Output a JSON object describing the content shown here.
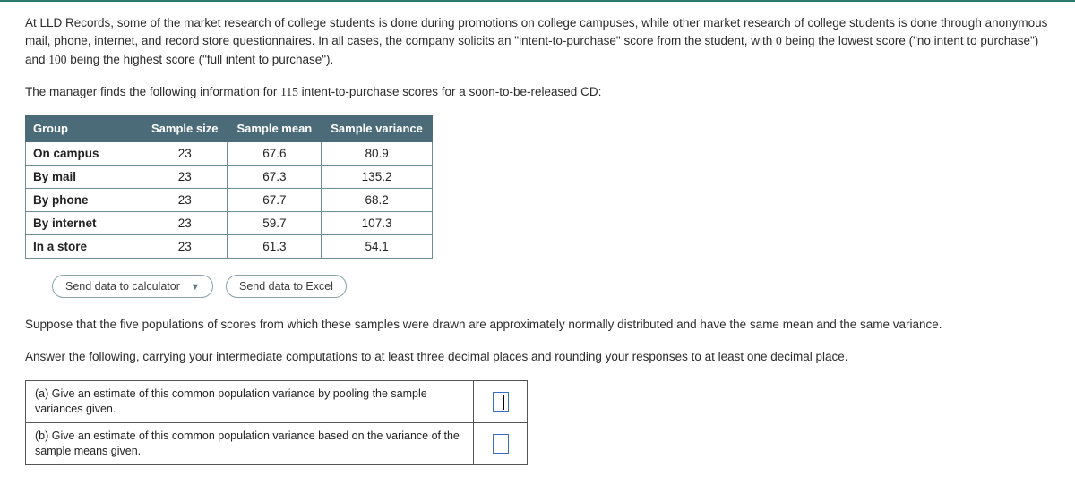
{
  "intro": {
    "p1_a": "At LLD Records, some of the market research of college students is done during promotions on college campuses, while other market research of college students is done through anonymous mail, phone, internet, and record store questionnaires. In all cases, the company solicits an \"intent-to-purchase\" score from the student, with ",
    "zero": "0",
    "p1_b": " being the lowest score (\"no intent to purchase\") and ",
    "hundred": "100",
    "p1_c": " being the highest score (\"full intent to purchase\").",
    "p2_a": "The manager finds the following information for ",
    "n": "115",
    "p2_b": " intent-to-purchase scores for a soon-to-be-released CD:"
  },
  "table": {
    "headers": {
      "group": "Group",
      "size": "Sample size",
      "mean": "Sample mean",
      "var": "Sample variance"
    },
    "rows": [
      {
        "label": "On campus",
        "size": "23",
        "mean": "67.6",
        "var": "80.9"
      },
      {
        "label": "By mail",
        "size": "23",
        "mean": "67.3",
        "var": "135.2"
      },
      {
        "label": "By phone",
        "size": "23",
        "mean": "67.7",
        "var": "68.2"
      },
      {
        "label": "By internet",
        "size": "23",
        "mean": "59.7",
        "var": "107.3"
      },
      {
        "label": "In a store",
        "size": "23",
        "mean": "61.3",
        "var": "54.1"
      }
    ],
    "style": {
      "header_bg": "#4a6b77",
      "header_fg": "#ffffff",
      "border_color": "#6f8b94",
      "cell_bg": "#ffffff",
      "font_size": 13.5
    }
  },
  "buttons": {
    "calc": "Send data to calculator",
    "excel": "Send data to Excel"
  },
  "mid": {
    "p3": "Suppose that the five populations of scores from which these samples were drawn are approximately normally distributed and have the same mean and the same variance.",
    "p4": "Answer the following, carrying your intermediate computations to at least three decimal places and rounding your responses to at least one decimal place."
  },
  "questions": {
    "a": "(a) Give an estimate of this common population variance by pooling the sample variances given.",
    "b": "(b) Give an estimate of this common population variance based on the variance of the sample means given."
  },
  "colors": {
    "top_border": "#2a7a6f",
    "text": "#2b2b2b",
    "input_border": "#3a6fbf"
  }
}
